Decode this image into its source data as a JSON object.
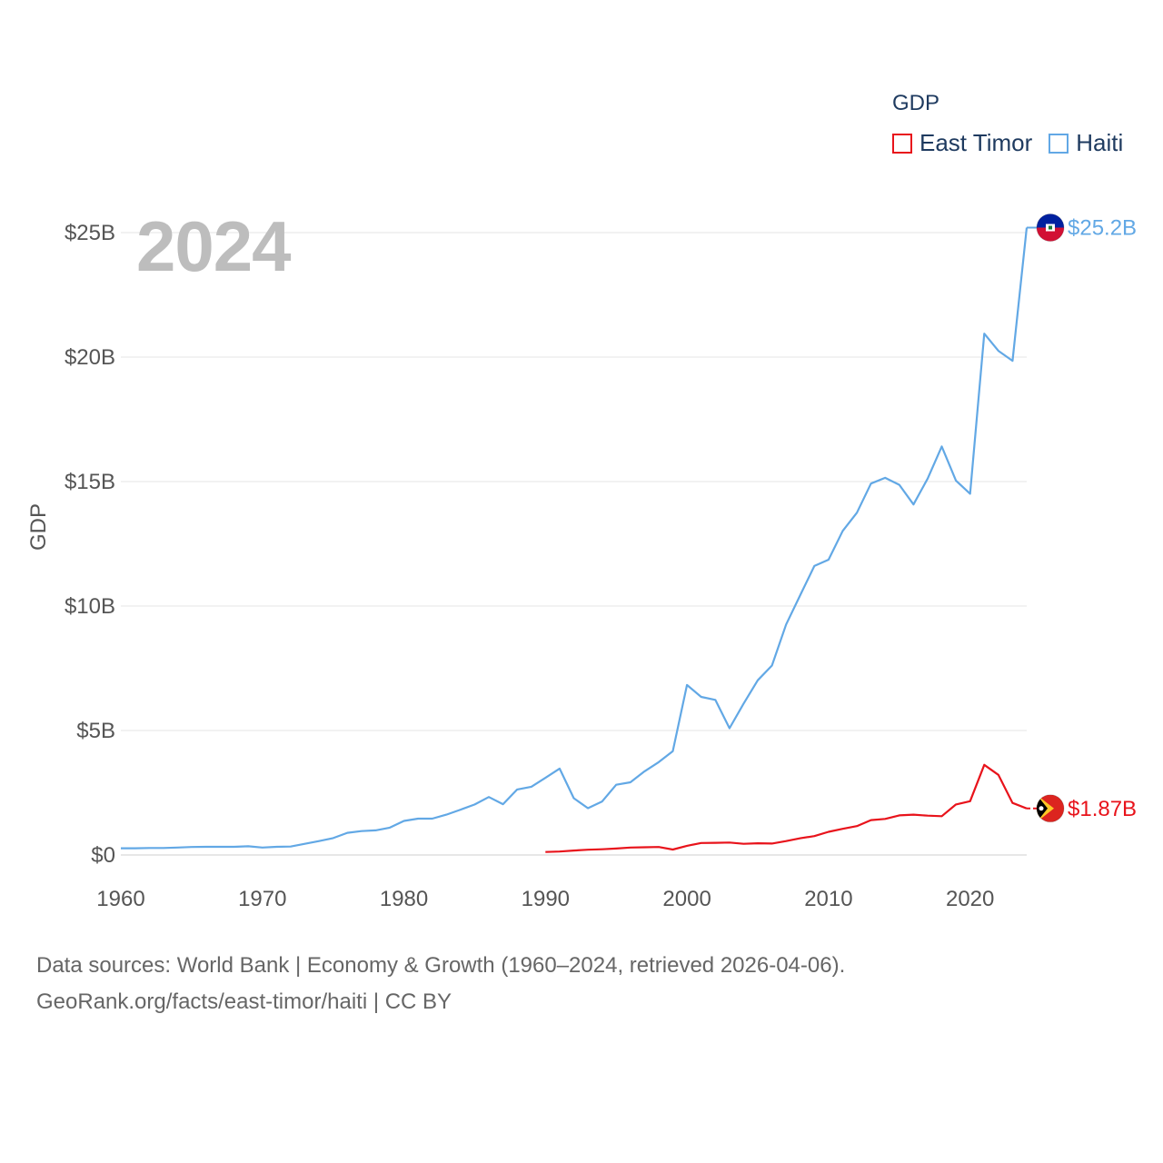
{
  "legend": {
    "title": "GDP",
    "items": [
      {
        "name": "East Timor",
        "color": "#e8131b"
      },
      {
        "name": "Haiti",
        "color": "#62a8e5"
      }
    ]
  },
  "year_label": "2024",
  "source": {
    "line1": "Data sources: World Bank | Economy & Growth (1960–2024, retrieved 2026-04-06).",
    "line2": "GeoRank.org/facts/east-timor/haiti | CC BY"
  },
  "chart_data": {
    "type": "line",
    "title": "",
    "xlabel": "",
    "ylabel": "GDP",
    "xlim": [
      1960,
      2024
    ],
    "ylim": [
      0,
      25.2
    ],
    "x_ticks": [
      1960,
      1970,
      1980,
      1990,
      2000,
      2010,
      2020
    ],
    "y_ticks": [
      {
        "value": 0,
        "label": "$0"
      },
      {
        "value": 5,
        "label": "$5B"
      },
      {
        "value": 10,
        "label": "$10B"
      },
      {
        "value": 15,
        "label": "$15B"
      },
      {
        "value": 20,
        "label": "$20B"
      },
      {
        "value": 25,
        "label": "$25B"
      }
    ],
    "units": "billions USD",
    "series": [
      {
        "name": "Haiti",
        "color": "#62a8e5",
        "end_label": "$25.2B",
        "x": [
          1960,
          1961,
          1962,
          1963,
          1964,
          1965,
          1966,
          1967,
          1968,
          1969,
          1970,
          1971,
          1972,
          1973,
          1974,
          1975,
          1976,
          1977,
          1978,
          1979,
          1980,
          1981,
          1982,
          1983,
          1984,
          1985,
          1986,
          1987,
          1988,
          1989,
          1990,
          1991,
          1992,
          1993,
          1994,
          1995,
          1996,
          1997,
          1998,
          1999,
          2000,
          2001,
          2002,
          2003,
          2004,
          2005,
          2006,
          2007,
          2008,
          2009,
          2010,
          2011,
          2012,
          2013,
          2014,
          2015,
          2016,
          2017,
          2018,
          2019,
          2020,
          2021,
          2022,
          2023,
          2024
        ],
        "values": [
          0.27,
          0.27,
          0.28,
          0.28,
          0.3,
          0.32,
          0.33,
          0.33,
          0.33,
          0.35,
          0.3,
          0.33,
          0.34,
          0.45,
          0.56,
          0.68,
          0.89,
          0.96,
          0.99,
          1.1,
          1.37,
          1.46,
          1.46,
          1.62,
          1.82,
          2.03,
          2.33,
          2.04,
          2.63,
          2.74,
          3.1,
          3.47,
          2.28,
          1.88,
          2.15,
          2.82,
          2.92,
          3.36,
          3.73,
          4.17,
          6.83,
          6.35,
          6.23,
          5.09,
          6.08,
          7.02,
          7.61,
          9.26,
          10.44,
          11.61,
          11.86,
          13.02,
          13.75,
          14.92,
          15.15,
          14.87,
          14.08,
          15.12,
          16.41,
          15.04,
          14.51,
          20.94,
          20.25,
          19.85,
          25.2
        ]
      },
      {
        "name": "East Timor",
        "color": "#e8131b",
        "end_label": "$1.87B",
        "x": [
          1990,
          1991,
          1992,
          1993,
          1994,
          1995,
          1996,
          1997,
          1998,
          1999,
          2000,
          2001,
          2002,
          2003,
          2004,
          2005,
          2006,
          2007,
          2008,
          2009,
          2010,
          2011,
          2012,
          2013,
          2014,
          2015,
          2016,
          2017,
          2018,
          2019,
          2020,
          2021,
          2022,
          2023,
          2024
        ],
        "values": [
          0.12,
          0.14,
          0.18,
          0.21,
          0.23,
          0.26,
          0.3,
          0.31,
          0.32,
          0.22,
          0.37,
          0.48,
          0.49,
          0.5,
          0.45,
          0.47,
          0.46,
          0.56,
          0.67,
          0.76,
          0.93,
          1.05,
          1.16,
          1.4,
          1.45,
          1.59,
          1.62,
          1.58,
          1.56,
          2.03,
          2.16,
          3.62,
          3.22,
          2.09,
          1.87
        ]
      }
    ]
  }
}
